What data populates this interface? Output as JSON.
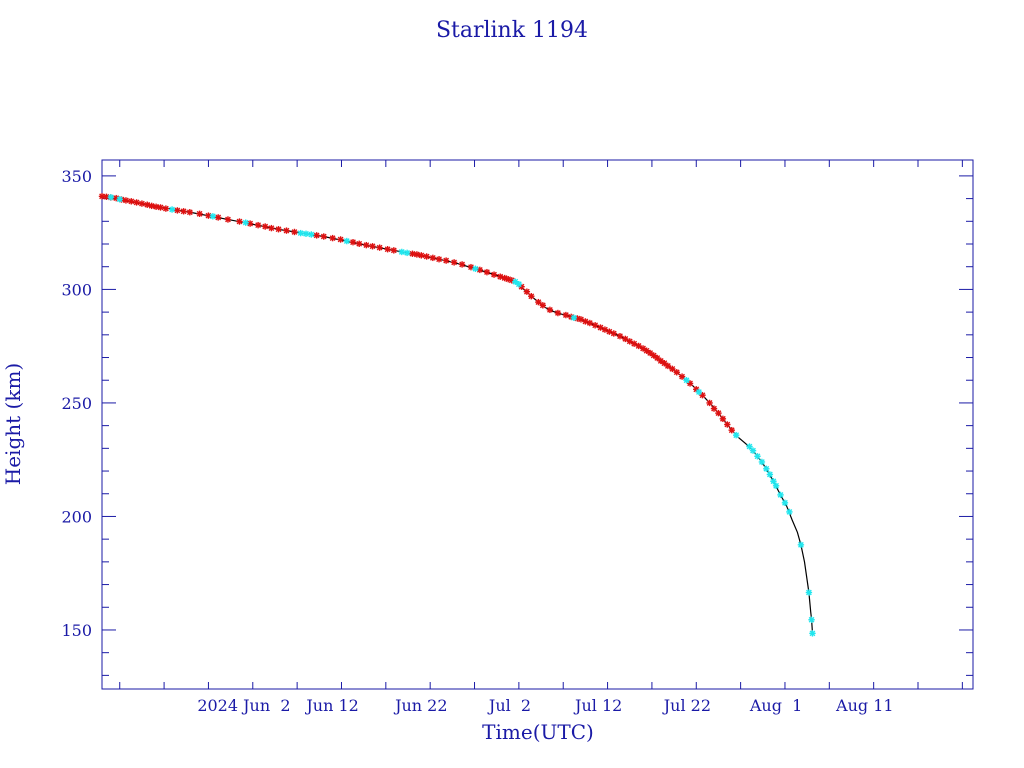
{
  "chart_data": {
    "type": "scatter",
    "title": "Starlink 1194",
    "xlabel": "Time(UTC)",
    "ylabel": "Height (km)",
    "x_axis": {
      "unit": "day of 2024",
      "range": [
        128.0,
        226.2
      ],
      "major_ticks": [
        {
          "day": 144,
          "label": "2024 Jun  2"
        },
        {
          "day": 154,
          "label": "Jun 12"
        },
        {
          "day": 164,
          "label": "Jun 22"
        },
        {
          "day": 174,
          "label": "Jul  2"
        },
        {
          "day": 184,
          "label": "Jul 12"
        },
        {
          "day": 194,
          "label": "Jul 22"
        },
        {
          "day": 204,
          "label": "Aug  1"
        },
        {
          "day": 214,
          "label": "Aug 11"
        }
      ],
      "minor_tick_step": 5
    },
    "y_axis": {
      "range": [
        124,
        357
      ],
      "major_ticks": [
        150,
        200,
        250,
        300,
        350
      ],
      "minor_tick_step": 10
    },
    "grid": false,
    "colors": {
      "frame": "#1a1aa6",
      "line": "#000000",
      "series_a": "#dd1111",
      "series_b": "#22e6ee"
    },
    "series": [
      {
        "marker": "star",
        "color": "#dd1111",
        "points": [
          [
            128.0,
            341
          ],
          [
            128.5,
            340.8
          ],
          [
            129.0,
            340.5
          ],
          [
            129.6,
            340.2
          ],
          [
            130.2,
            339.6
          ],
          [
            130.7,
            339.2
          ],
          [
            131.3,
            338.8
          ],
          [
            131.9,
            338.3
          ],
          [
            132.5,
            337.8
          ],
          [
            133.1,
            337.3
          ],
          [
            133.6,
            336.8
          ],
          [
            134.1,
            336.4
          ],
          [
            134.6,
            336.1
          ],
          [
            135.2,
            335.6
          ],
          [
            136.5,
            334.8
          ],
          [
            137.2,
            334.4
          ],
          [
            137.9,
            334.0
          ],
          [
            139.0,
            333.3
          ],
          [
            140.0,
            332.5
          ],
          [
            141.1,
            331.7
          ],
          [
            142.2,
            330.8
          ],
          [
            143.5,
            329.9
          ],
          [
            144.7,
            329.0
          ],
          [
            145.6,
            328.3
          ],
          [
            146.4,
            327.7
          ],
          [
            147.1,
            327.0
          ],
          [
            147.9,
            326.5
          ],
          [
            148.8,
            325.9
          ],
          [
            149.7,
            325.3
          ],
          [
            152.2,
            323.8
          ],
          [
            153.0,
            323.3
          ],
          [
            154.0,
            322.6
          ],
          [
            154.9,
            322.0
          ],
          [
            156.3,
            320.8
          ],
          [
            157.0,
            320.1
          ],
          [
            157.8,
            319.5
          ],
          [
            158.5,
            319.0
          ],
          [
            159.3,
            318.4
          ],
          [
            160.2,
            317.7
          ],
          [
            160.9,
            317.2
          ],
          [
            163.0,
            315.7
          ],
          [
            163.5,
            315.4
          ],
          [
            164.0,
            315.0
          ],
          [
            164.6,
            314.5
          ],
          [
            165.3,
            313.9
          ],
          [
            166.0,
            313.3
          ],
          [
            166.8,
            312.7
          ],
          [
            167.7,
            311.9
          ],
          [
            168.6,
            311.0
          ],
          [
            169.6,
            309.8
          ],
          [
            170.6,
            308.6
          ],
          [
            171.4,
            307.6
          ],
          [
            172.2,
            306.5
          ],
          [
            172.9,
            305.6
          ],
          [
            173.4,
            305.0
          ],
          [
            173.8,
            304.5
          ],
          [
            174.2,
            304.0
          ],
          [
            175.3,
            301.2
          ],
          [
            175.9,
            299.0
          ],
          [
            176.4,
            297.0
          ],
          [
            177.2,
            294.4
          ],
          [
            177.7,
            293.0
          ],
          [
            178.5,
            291.0
          ],
          [
            179.4,
            289.6
          ],
          [
            180.3,
            288.7
          ],
          [
            180.9,
            287.9
          ],
          [
            181.6,
            287.2
          ],
          [
            182.0,
            286.8
          ],
          [
            182.5,
            285.9
          ],
          [
            183.0,
            285.2
          ],
          [
            183.6,
            284.2
          ],
          [
            184.2,
            283.2
          ],
          [
            184.7,
            282.3
          ],
          [
            185.2,
            281.4
          ],
          [
            185.7,
            280.6
          ],
          [
            186.4,
            279.4
          ],
          [
            187.0,
            278.2
          ],
          [
            187.5,
            277.1
          ],
          [
            188.0,
            276.1
          ],
          [
            188.5,
            275.1
          ],
          [
            189.0,
            274.0
          ],
          [
            189.4,
            273.0
          ],
          [
            189.8,
            272.0
          ],
          [
            190.2,
            270.9
          ],
          [
            190.6,
            269.8
          ],
          [
            191.0,
            268.5
          ],
          [
            191.4,
            267.5
          ],
          [
            191.8,
            266.3
          ],
          [
            192.3,
            265.0
          ],
          [
            192.8,
            263.5
          ],
          [
            193.4,
            261.6
          ],
          [
            194.3,
            258.6
          ],
          [
            195.0,
            256.0
          ],
          [
            195.7,
            253.4
          ],
          [
            196.5,
            250.0
          ],
          [
            197.0,
            247.5
          ],
          [
            197.5,
            245.5
          ],
          [
            198.0,
            243.0
          ],
          [
            198.5,
            240.5
          ],
          [
            199.0,
            238.0
          ]
        ]
      },
      {
        "marker": "star",
        "color": "#22e6ee",
        "points": [
          [
            129.0,
            340.6
          ],
          [
            130.0,
            339.7
          ],
          [
            135.9,
            335.2
          ],
          [
            140.5,
            332.2
          ],
          [
            144.2,
            329.4
          ],
          [
            150.4,
            324.8
          ],
          [
            151.0,
            324.5
          ],
          [
            151.6,
            324.2
          ],
          [
            155.6,
            321.3
          ],
          [
            161.8,
            316.5
          ],
          [
            162.4,
            316.1
          ],
          [
            170.1,
            309.1
          ],
          [
            174.6,
            303.4
          ],
          [
            175.0,
            302.3
          ],
          [
            181.2,
            287.5
          ],
          [
            193.9,
            260.0
          ],
          [
            195.3,
            254.8
          ],
          [
            199.5,
            235.8
          ],
          [
            201.0,
            230.8
          ],
          [
            201.4,
            229.0
          ],
          [
            201.9,
            226.5
          ],
          [
            202.4,
            224.0
          ],
          [
            202.9,
            221.0
          ],
          [
            203.3,
            218.5
          ],
          [
            203.7,
            215.5
          ],
          [
            204.0,
            213.5
          ],
          [
            204.5,
            209.5
          ],
          [
            205.0,
            206.0
          ],
          [
            205.5,
            202.0
          ],
          [
            206.8,
            187.5
          ],
          [
            207.7,
            166.5
          ],
          [
            208.0,
            154.5
          ],
          [
            208.1,
            148.5
          ]
        ]
      }
    ],
    "fit_line": [
      [
        128.0,
        341
      ],
      [
        133.0,
        337.3
      ],
      [
        138.0,
        333.9
      ],
      [
        143.0,
        330.2
      ],
      [
        148.0,
        326.4
      ],
      [
        153.0,
        323.3
      ],
      [
        158.0,
        319.3
      ],
      [
        163.0,
        315.7
      ],
      [
        166.0,
        313.3
      ],
      [
        168.0,
        311.5
      ],
      [
        170.0,
        309.2
      ],
      [
        172.0,
        306.8
      ],
      [
        173.5,
        305.0
      ],
      [
        174.5,
        303.5
      ],
      [
        175.0,
        302.3
      ],
      [
        175.3,
        300.8
      ],
      [
        175.8,
        299.2
      ],
      [
        176.4,
        297.0
      ],
      [
        177.2,
        294.4
      ],
      [
        178.0,
        292.0
      ],
      [
        178.8,
        290.4
      ],
      [
        179.6,
        289.3
      ],
      [
        180.5,
        288.4
      ],
      [
        181.6,
        287.2
      ],
      [
        182.6,
        285.7
      ],
      [
        183.6,
        284.2
      ],
      [
        184.6,
        282.4
      ],
      [
        185.6,
        280.7
      ],
      [
        186.6,
        279.0
      ],
      [
        187.6,
        276.9
      ],
      [
        188.6,
        274.8
      ],
      [
        189.6,
        272.5
      ],
      [
        190.6,
        269.8
      ],
      [
        191.6,
        266.9
      ],
      [
        192.6,
        264.1
      ],
      [
        193.6,
        261.0
      ],
      [
        194.6,
        257.6
      ],
      [
        195.6,
        253.8
      ],
      [
        196.6,
        249.6
      ],
      [
        197.6,
        245.0
      ],
      [
        198.6,
        240.0
      ],
      [
        199.6,
        235.3
      ],
      [
        200.6,
        232.0
      ],
      [
        201.4,
        229.0
      ],
      [
        202.2,
        225.0
      ],
      [
        202.9,
        221.0
      ],
      [
        203.7,
        215.5
      ],
      [
        204.5,
        209.5
      ],
      [
        205.2,
        204.5
      ],
      [
        205.8,
        198.5
      ],
      [
        206.4,
        193.0
      ],
      [
        206.8,
        187.5
      ],
      [
        207.2,
        180.0
      ],
      [
        207.5,
        172.0
      ],
      [
        207.7,
        166.5
      ],
      [
        207.9,
        158.0
      ],
      [
        208.0,
        154.5
      ],
      [
        208.1,
        148.5
      ]
    ]
  }
}
